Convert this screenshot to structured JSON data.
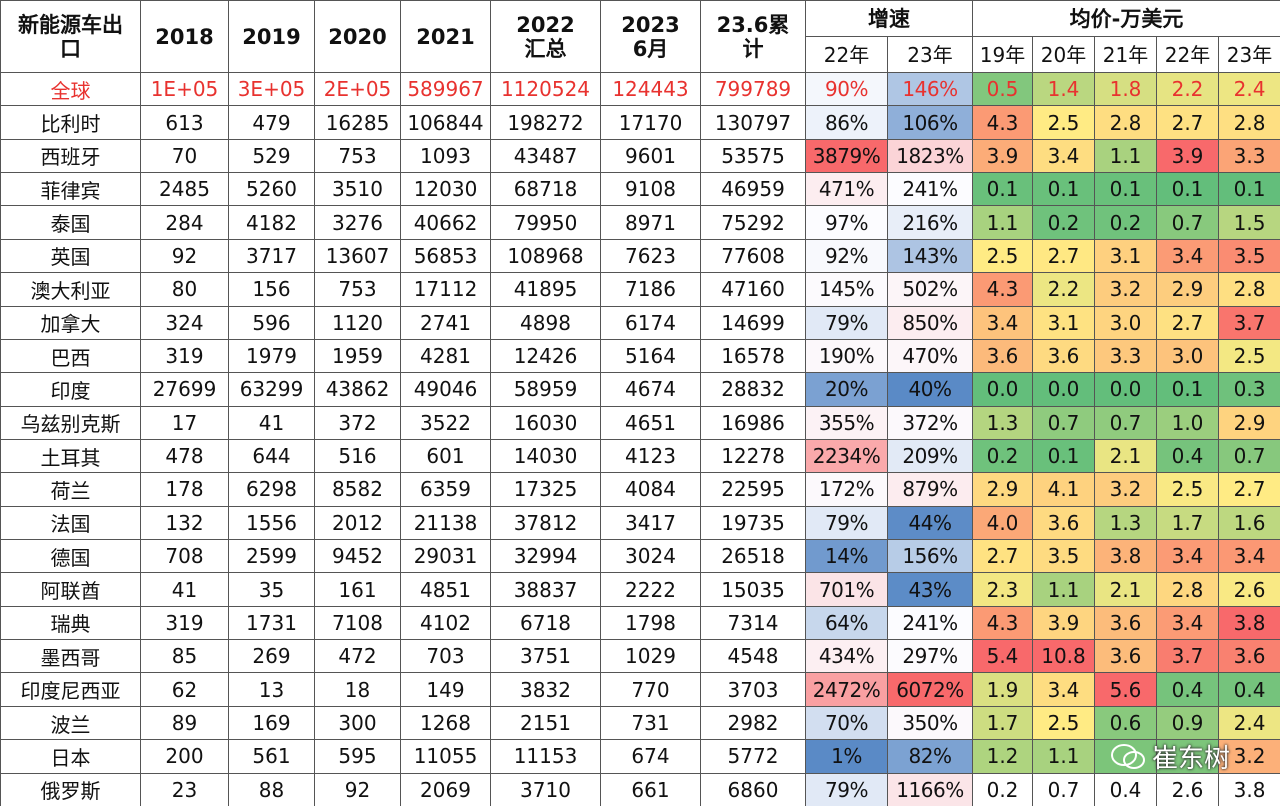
{
  "header": {
    "title_cell": "新能源车出口",
    "years": [
      "2018",
      "2019",
      "2020",
      "2021",
      "2022 汇总",
      "2023 6月",
      "23.6累计"
    ],
    "growth": {
      "title": "增速",
      "cols": [
        "22年",
        "23年"
      ]
    },
    "price": {
      "title": "均价-万美元",
      "cols": [
        "19年",
        "20年",
        "21年",
        "22年",
        "23年"
      ]
    }
  },
  "table": {
    "rows": [
      [
        "全球",
        "1E+05",
        "3E+05",
        "2E+05",
        "589967",
        "1120524",
        "124443",
        "799789",
        "90%",
        "146%",
        "0.5",
        "1.4",
        "1.8",
        "2.2",
        "2.4"
      ],
      [
        "比利时",
        "613",
        "479",
        "16285",
        "106844",
        "198272",
        "17170",
        "130797",
        "86%",
        "106%",
        "4.3",
        "2.5",
        "2.8",
        "2.7",
        "2.8"
      ],
      [
        "西班牙",
        "70",
        "529",
        "753",
        "1093",
        "43487",
        "9601",
        "53575",
        "3879%",
        "1823%",
        "3.9",
        "3.4",
        "1.1",
        "3.9",
        "3.3"
      ],
      [
        "菲律宾",
        "2485",
        "5260",
        "3510",
        "12030",
        "68718",
        "9108",
        "46959",
        "471%",
        "241%",
        "0.1",
        "0.1",
        "0.1",
        "0.1",
        "0.1"
      ],
      [
        "泰国",
        "284",
        "4182",
        "3276",
        "40662",
        "79950",
        "8971",
        "75292",
        "97%",
        "216%",
        "1.1",
        "0.2",
        "0.2",
        "0.7",
        "1.5"
      ],
      [
        "英国",
        "92",
        "3717",
        "13607",
        "56853",
        "108968",
        "7623",
        "77608",
        "92%",
        "143%",
        "2.5",
        "2.7",
        "3.1",
        "3.4",
        "3.5"
      ],
      [
        "澳大利亚",
        "80",
        "156",
        "753",
        "17112",
        "41895",
        "7186",
        "47160",
        "145%",
        "502%",
        "4.3",
        "2.2",
        "3.2",
        "2.9",
        "2.8"
      ],
      [
        "加拿大",
        "324",
        "596",
        "1120",
        "2741",
        "4898",
        "6174",
        "14699",
        "79%",
        "850%",
        "3.4",
        "3.1",
        "3.0",
        "2.7",
        "3.7"
      ],
      [
        "巴西",
        "319",
        "1979",
        "1959",
        "4281",
        "12426",
        "5164",
        "16578",
        "190%",
        "470%",
        "3.6",
        "3.6",
        "3.3",
        "3.0",
        "2.5"
      ],
      [
        "印度",
        "27699",
        "63299",
        "43862",
        "49046",
        "58959",
        "4674",
        "28832",
        "20%",
        "40%",
        "0.0",
        "0.0",
        "0.0",
        "0.1",
        "0.3"
      ],
      [
        "乌兹别克斯",
        "17",
        "41",
        "372",
        "3522",
        "16030",
        "4651",
        "16986",
        "355%",
        "372%",
        "1.3",
        "0.7",
        "0.7",
        "1.0",
        "2.9"
      ],
      [
        "土耳其",
        "478",
        "644",
        "516",
        "601",
        "14030",
        "4123",
        "12278",
        "2234%",
        "209%",
        "0.2",
        "0.1",
        "2.1",
        "0.4",
        "0.7"
      ],
      [
        "荷兰",
        "178",
        "6298",
        "8582",
        "6359",
        "17325",
        "4084",
        "22595",
        "172%",
        "879%",
        "2.9",
        "4.1",
        "3.2",
        "2.5",
        "2.7"
      ],
      [
        "法国",
        "132",
        "1556",
        "2012",
        "21138",
        "37812",
        "3417",
        "19735",
        "79%",
        "44%",
        "4.0",
        "3.6",
        "1.3",
        "1.7",
        "1.6"
      ],
      [
        "德国",
        "708",
        "2599",
        "9452",
        "29031",
        "32994",
        "3024",
        "26518",
        "14%",
        "156%",
        "2.7",
        "3.5",
        "3.8",
        "3.4",
        "3.4"
      ],
      [
        "阿联酋",
        "41",
        "35",
        "161",
        "4851",
        "38837",
        "2222",
        "15035",
        "701%",
        "43%",
        "2.3",
        "1.1",
        "2.1",
        "2.8",
        "2.6"
      ],
      [
        "瑞典",
        "319",
        "1731",
        "7108",
        "4102",
        "6718",
        "1798",
        "7314",
        "64%",
        "241%",
        "4.3",
        "3.9",
        "3.6",
        "3.4",
        "3.8"
      ],
      [
        "墨西哥",
        "85",
        "269",
        "472",
        "703",
        "3751",
        "1029",
        "4548",
        "434%",
        "297%",
        "5.4",
        "10.8",
        "3.6",
        "3.7",
        "3.6"
      ],
      [
        "印度尼西亚",
        "62",
        "13",
        "18",
        "149",
        "3832",
        "770",
        "3703",
        "2472%",
        "6072%",
        "1.9",
        "3.4",
        "5.6",
        "0.4",
        "0.4"
      ],
      [
        "波兰",
        "89",
        "169",
        "300",
        "1268",
        "2151",
        "731",
        "2982",
        "70%",
        "350%",
        "1.7",
        "2.5",
        "0.6",
        "0.9",
        "2.4"
      ],
      [
        "日本",
        "200",
        "561",
        "595",
        "11055",
        "11153",
        "674",
        "5772",
        "1%",
        "82%",
        "1.2",
        "1.1",
        null,
        null,
        "3.2"
      ],
      [
        "俄罗斯",
        "23",
        "88",
        "92",
        "2069",
        "3710",
        "661",
        "6860",
        "79%",
        "1166%",
        "0.2",
        "0.7",
        "0.4",
        "2.6",
        "3.8"
      ]
    ]
  },
  "watermark": "崔东树"
}
